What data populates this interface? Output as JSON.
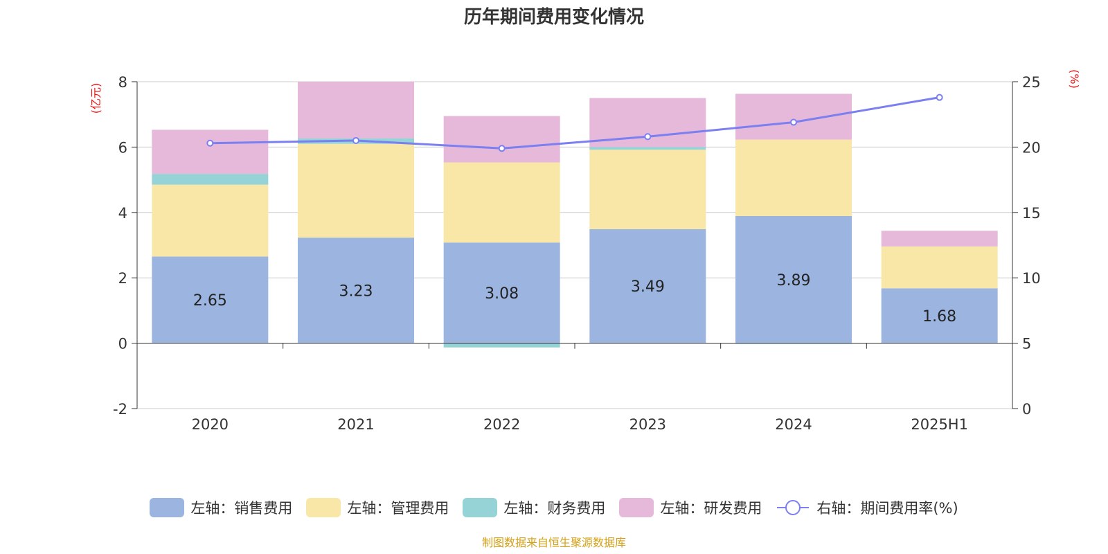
{
  "colors": {
    "sales": "#9bb5e0",
    "admin": "#f9e7a8",
    "finance": "#95d3d6",
    "rnd": "#e6b8d9",
    "rate_line": "#7b7ff0",
    "axis_unit": "#ee1111",
    "source": "#d4a017"
  },
  "chart_data": {
    "type": "bar",
    "stacked": true,
    "title": "历年期间费用变化情况",
    "categories": [
      "2020",
      "2021",
      "2022",
      "2023",
      "2024",
      "2025H1"
    ],
    "left_axis": {
      "unit": "(亿元)",
      "ylim": [
        -2,
        8
      ],
      "ticks": [
        "-2",
        "0",
        "2",
        "4",
        "6",
        "8"
      ]
    },
    "right_axis": {
      "unit": "(%)",
      "ylim": [
        0,
        25
      ],
      "ticks": [
        "0",
        "5",
        "10",
        "15",
        "20",
        "25"
      ]
    },
    "series": [
      {
        "name": "左轴：销售费用",
        "type": "bar",
        "axis": "left",
        "color": "#9bb5e0",
        "values": [
          2.65,
          3.23,
          3.08,
          3.49,
          3.89,
          1.68
        ],
        "labels": [
          "2.65",
          "3.23",
          "3.08",
          "3.49",
          "3.89",
          "1.68"
        ]
      },
      {
        "name": "左轴：管理费用",
        "type": "bar",
        "axis": "left",
        "color": "#f9e7a8",
        "values": [
          2.2,
          2.87,
          2.45,
          2.43,
          2.34,
          1.28
        ]
      },
      {
        "name": "左轴：财务费用",
        "type": "bar",
        "axis": "left",
        "color": "#95d3d6",
        "values": [
          0.33,
          0.17,
          -0.13,
          0.08,
          -0.02,
          0.0
        ]
      },
      {
        "name": "左轴：研发费用",
        "type": "bar",
        "axis": "left",
        "color": "#e6b8d9",
        "values": [
          1.35,
          1.73,
          1.42,
          1.5,
          1.4,
          0.48
        ]
      },
      {
        "name": "右轴：期间费用率(%)",
        "type": "line",
        "axis": "right",
        "color": "#7b7ff0",
        "values": [
          20.3,
          20.5,
          19.9,
          20.8,
          21.9,
          23.8
        ]
      }
    ],
    "grid": true,
    "legend_position": "bottom"
  },
  "source_text": "制图数据来自恒生聚源数据库"
}
